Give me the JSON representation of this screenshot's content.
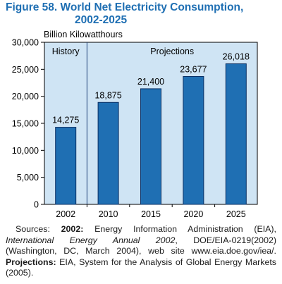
{
  "figure": {
    "title_line1": "Figure 58.  World Net Electricity Consumption,",
    "title_line2": "2002-2025"
  },
  "chart_data": {
    "type": "bar",
    "title": "World Net Electricity Consumption, 2002-2025",
    "ylabel": "Billion Kilowatthours",
    "xlabel": "",
    "categories": [
      "2002",
      "2010",
      "2015",
      "2020",
      "2025"
    ],
    "values": [
      14275,
      18875,
      21400,
      23677,
      26018
    ],
    "value_labels": [
      "14,275",
      "18,875",
      "21,400",
      "23,677",
      "26,018"
    ],
    "ylim": [
      0,
      30000
    ],
    "yticks": [
      0,
      5000,
      10000,
      15000,
      20000,
      25000,
      30000
    ],
    "ytick_labels": [
      "0",
      "5,000",
      "10,000",
      "15,000",
      "20,000",
      "25,000",
      "30,000"
    ],
    "grid": false,
    "sections": [
      {
        "label": "History",
        "categories": [
          "2002"
        ]
      },
      {
        "label": "Projections",
        "categories": [
          "2010",
          "2015",
          "2020",
          "2025"
        ]
      }
    ],
    "colors": {
      "bar": "#1f6fb3",
      "bar_edge": "#0b2f63",
      "panel": "#cfe4f4",
      "axis": "#000000"
    }
  },
  "sources": {
    "prefix": "Sources: ",
    "history_label": "2002:",
    "history_text_1": " Energy Information Administration (EIA), ",
    "history_title": "International Energy Annual 2002",
    "history_text_2": ", DOE/EIA-0219(2002) (Washington, DC, March 2004), web site www.eia.doe.gov/iea/. ",
    "projections_label": "Projections:",
    "projections_text": " EIA, System for the Analysis of Global Energy Markets (2005)."
  }
}
